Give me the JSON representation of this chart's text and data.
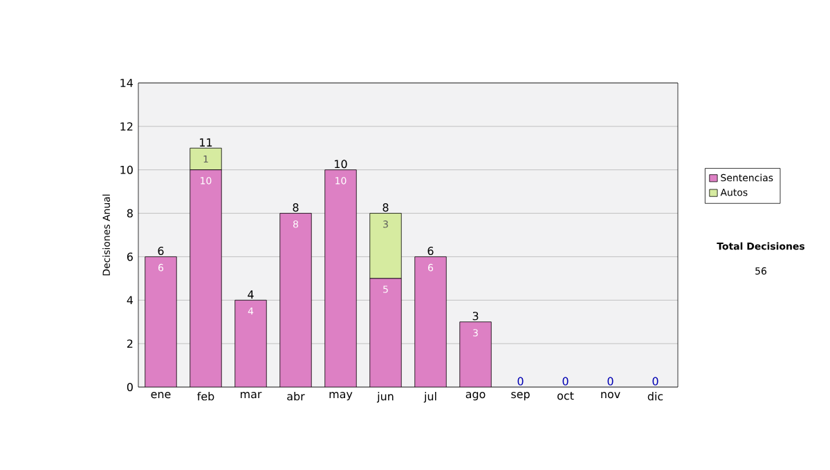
{
  "chart_data": {
    "type": "bar",
    "stacked": true,
    "ylabel": "Decisiones Anual",
    "categories": [
      "ene",
      "feb",
      "mar",
      "abr",
      "may",
      "jun",
      "jul",
      "ago",
      "sep",
      "oct",
      "nov",
      "dic"
    ],
    "series": [
      {
        "name": "Sentencias",
        "color": "#dd80c4",
        "values": [
          6,
          10,
          4,
          8,
          10,
          5,
          6,
          3,
          0,
          0,
          0,
          0
        ],
        "value_labels": [
          "6",
          "10",
          "4",
          "8",
          "10",
          "5",
          "6",
          "3",
          null,
          null,
          null,
          null
        ]
      },
      {
        "name": "Autos",
        "color": "#d6eba0",
        "values": [
          0,
          1,
          0,
          0,
          0,
          3,
          0,
          0,
          0,
          0,
          0,
          0
        ],
        "value_labels": [
          null,
          "1",
          null,
          null,
          null,
          "3",
          null,
          null,
          null,
          null,
          null,
          null
        ]
      }
    ],
    "totals": [
      "6",
      "11",
      "4",
      "8",
      "10",
      "8",
      "6",
      "3",
      "0",
      "0",
      "0",
      "0"
    ],
    "ylim": [
      0,
      14
    ],
    "yticks": [
      0,
      2,
      4,
      6,
      8,
      10,
      12,
      14
    ],
    "grid": "y",
    "legend": "right",
    "annotations": [
      "Total Decisiones",
      "56"
    ]
  }
}
